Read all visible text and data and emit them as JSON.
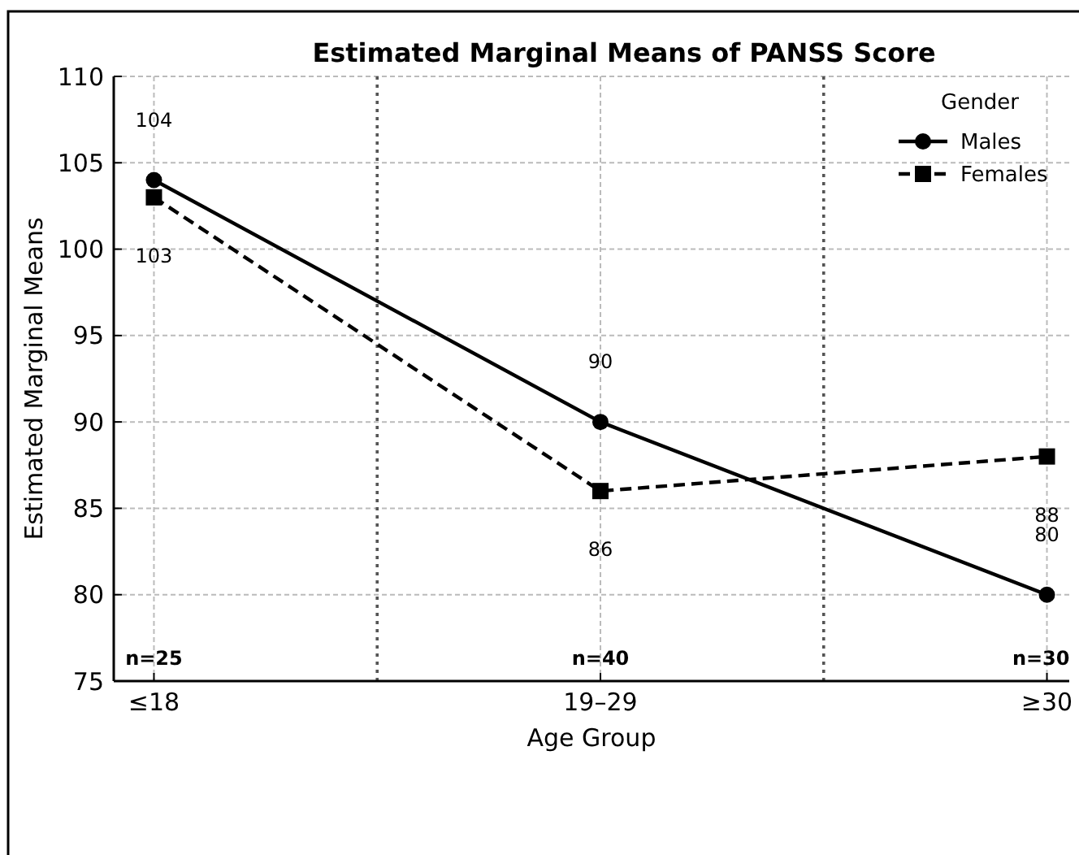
{
  "chart_data": {
    "type": "line",
    "title": "Estimated Marginal Means of PANSS Score",
    "xlabel": "Age Group",
    "ylabel": "Estimated Marginal Means",
    "legend_title": "Gender",
    "categories": [
      "≤18",
      "19–29",
      "≥30"
    ],
    "series": [
      {
        "name": "Males",
        "color": "#000000",
        "values": [
          104,
          90,
          80
        ],
        "marker": "circle",
        "line_style": "solid"
      },
      {
        "name": "Females",
        "color": "#000000",
        "values": [
          103,
          86,
          88
        ],
        "marker": "square",
        "line_style": "dashed"
      }
    ],
    "ylim": [
      75,
      110
    ],
    "yticks": [
      75,
      80,
      85,
      90,
      95,
      100,
      105,
      110
    ],
    "grid": true,
    "legend": "top right",
    "data_labels": true,
    "annotations": [
      "n=25",
      "n=40",
      "n=30"
    ]
  }
}
